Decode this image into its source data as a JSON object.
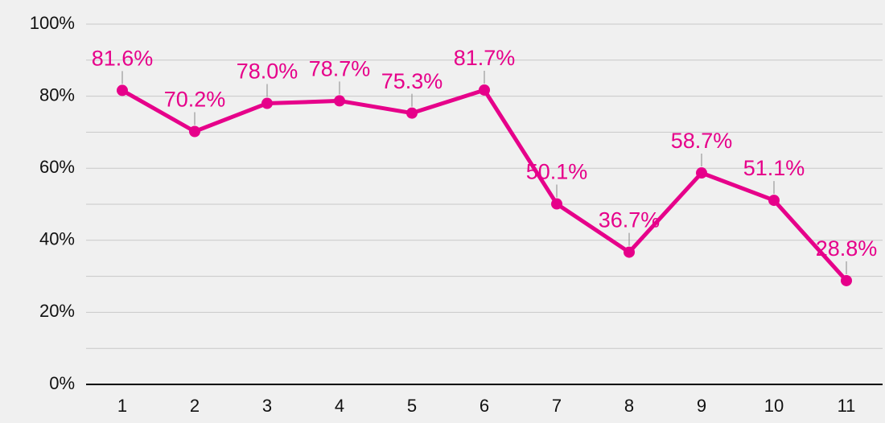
{
  "chart_data": {
    "type": "line",
    "categories": [
      "1",
      "2",
      "3",
      "4",
      "5",
      "6",
      "7",
      "8",
      "9",
      "10",
      "11"
    ],
    "values": [
      81.6,
      70.2,
      78.0,
      78.7,
      75.3,
      81.7,
      50.1,
      36.7,
      58.7,
      51.1,
      28.8
    ],
    "value_labels": [
      "81.6%",
      "70.2%",
      "78.0%",
      "78.7%",
      "75.3%",
      "81.7%",
      "50.1%",
      "36.7%",
      "58.7%",
      "51.1%",
      "28.8%"
    ],
    "color": "#e6008a",
    "ylim": [
      0,
      100
    ],
    "yticks": [
      {
        "value": 0,
        "label": "0%"
      },
      {
        "value": 20,
        "label": "20%"
      },
      {
        "value": 40,
        "label": "40%"
      },
      {
        "value": 60,
        "label": "60%"
      },
      {
        "value": 80,
        "label": "80%"
      },
      {
        "value": 100,
        "label": "100%"
      }
    ],
    "minor_yticks": [
      10,
      30,
      50,
      70,
      90
    ],
    "grid": true
  }
}
